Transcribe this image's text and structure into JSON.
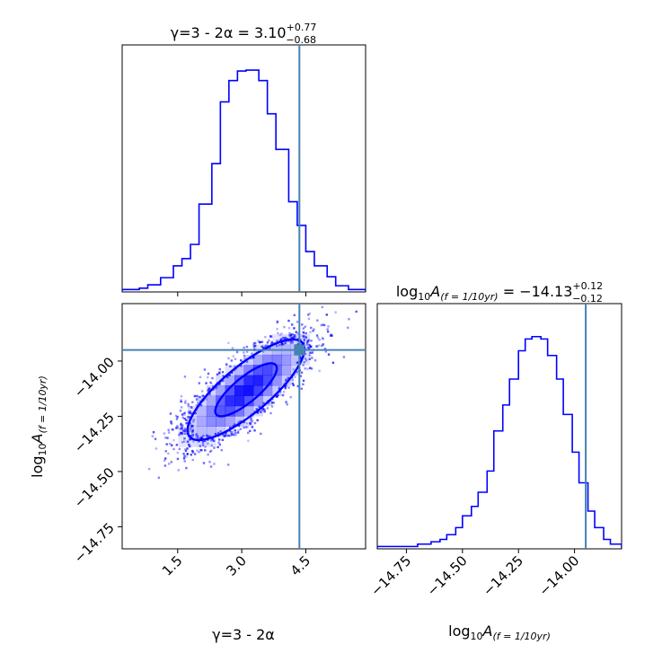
{
  "chart_data": [
    {
      "type": "histogram",
      "panel": "top-left",
      "parameter": "gamma",
      "title": {
        "main": "γ=3 - 2α = 3.10",
        "sup": "+0.77",
        "sub": "−0.68"
      },
      "xlim": [
        0.2,
        5.9
      ],
      "ylim": [
        0,
        52
      ],
      "truth": 4.35,
      "bins": [
        [
          0.2,
          0.6
        ],
        [
          0.6,
          0.8
        ],
        [
          0.8,
          1.1
        ],
        [
          1.1,
          1.4
        ],
        [
          1.4,
          1.6
        ],
        [
          1.6,
          1.8
        ],
        [
          1.8,
          2.0
        ],
        [
          2.0,
          2.3
        ],
        [
          2.3,
          2.5
        ],
        [
          2.5,
          2.7
        ],
        [
          2.7,
          2.9
        ],
        [
          2.9,
          3.1
        ],
        [
          3.1,
          3.4
        ],
        [
          3.4,
          3.6
        ],
        [
          3.6,
          3.8
        ],
        [
          3.8,
          4.1
        ],
        [
          4.1,
          4.3
        ],
        [
          4.3,
          4.5
        ],
        [
          4.5,
          4.7
        ],
        [
          4.7,
          5.0
        ],
        [
          5.0,
          5.2
        ],
        [
          5.2,
          5.5
        ],
        [
          5.5,
          5.9
        ]
      ],
      "counts": [
        0.5,
        0.8,
        1.5,
        3,
        5.5,
        7,
        10,
        18.5,
        27,
        40,
        44.5,
        46.5,
        46.7,
        44.5,
        37.5,
        30,
        19,
        14,
        8.5,
        5.5,
        3.2,
        1.3,
        0.5
      ]
    },
    {
      "type": "scatter-contour",
      "panel": "bottom-left",
      "xlim": [
        0.2,
        5.9
      ],
      "ylim": [
        -14.85,
        -13.74
      ],
      "xticks": [
        1.5,
        3.0,
        4.5
      ],
      "xtick_labels": [
        "1.5",
        "3.0",
        "4.5"
      ],
      "yticks": [
        -14.0,
        -14.25,
        -14.5,
        -14.75
      ],
      "ytick_labels": [
        "−14.00",
        "−14.25",
        "−14.50",
        "−14.75"
      ],
      "xlabel": "γ=3 - 2α",
      "ylabel_base": "log",
      "ylabel_sub": "10",
      "ylabel_A": "A",
      "ylabel_paren": "(f = 1/10yr)",
      "truth": [
        4.35,
        -13.95
      ],
      "center": [
        3.1,
        -14.13
      ],
      "cov": [
        [
          0.52,
          0.07
        ],
        [
          0.07,
          0.0144
        ]
      ]
    },
    {
      "type": "histogram",
      "panel": "bottom-right",
      "parameter": "log10A",
      "title": {
        "main": "log",
        "main_sub": "10",
        "main_A": "A",
        "main_paren": "(f = 1/10yr)",
        "value": " = −14.13",
        "sup": "+0.12",
        "sub": "−0.12"
      },
      "xlim": [
        -14.88,
        -13.79
      ],
      "ylim": [
        0,
        52
      ],
      "truth": -13.95,
      "xticks": [
        -14.75,
        -14.5,
        -14.25,
        -14.0
      ],
      "xtick_labels": [
        "−14.75",
        "−14.50",
        "−14.25",
        "−14.00"
      ],
      "xlabel_base": "log",
      "xlabel_sub": "10",
      "xlabel_A": "A",
      "xlabel_paren": "(f = 1/10yr)",
      "bins": [
        [
          -14.88,
          -14.7
        ],
        [
          -14.7,
          -14.64
        ],
        [
          -14.64,
          -14.6
        ],
        [
          -14.6,
          -14.57
        ],
        [
          -14.57,
          -14.53
        ],
        [
          -14.53,
          -14.5
        ],
        [
          -14.5,
          -14.46
        ],
        [
          -14.46,
          -14.43
        ],
        [
          -14.43,
          -14.39
        ],
        [
          -14.39,
          -14.36
        ],
        [
          -14.36,
          -14.32
        ],
        [
          -14.32,
          -14.29
        ],
        [
          -14.29,
          -14.25
        ],
        [
          -14.25,
          -14.22
        ],
        [
          -14.22,
          -14.19
        ],
        [
          -14.19,
          -14.15
        ],
        [
          -14.15,
          -14.12
        ],
        [
          -14.12,
          -14.08
        ],
        [
          -14.08,
          -14.05
        ],
        [
          -14.05,
          -14.01
        ],
        [
          -14.01,
          -13.98
        ],
        [
          -13.98,
          -13.94
        ],
        [
          -13.94,
          -13.91
        ],
        [
          -13.91,
          -13.87
        ],
        [
          -13.87,
          -13.84
        ],
        [
          -13.84,
          -13.79
        ]
      ],
      "counts": [
        0.5,
        1,
        1.5,
        2,
        3,
        4.5,
        7,
        9,
        12,
        16.5,
        25,
        30.5,
        36,
        42,
        44.5,
        45,
        44.5,
        41,
        36,
        28.5,
        20.5,
        14,
        8,
        4.5,
        2,
        1
      ]
    }
  ]
}
